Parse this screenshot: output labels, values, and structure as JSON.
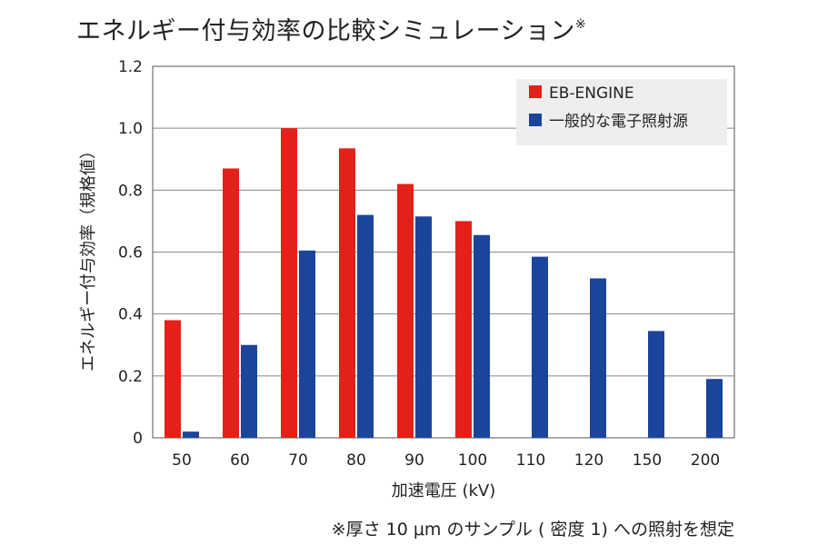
{
  "chart_data": {
    "type": "bar",
    "title": "エネルギー付与効率の比較シミュレーション",
    "title_mark": "※",
    "xlabel": "加速電圧 (kV)",
    "ylabel": "エネルギー付与効率（規格値）",
    "footnote": "※厚さ 10 μm のサンプル ( 密度 1) への照射を想定",
    "categories": [
      "50",
      "60",
      "70",
      "80",
      "90",
      "100",
      "110",
      "120",
      "150",
      "200"
    ],
    "ylim": [
      0,
      1.2
    ],
    "yticks": [
      "0",
      "0.2",
      "0.4",
      "0.6",
      "0.8",
      "1.0",
      "1.2"
    ],
    "grid": true,
    "legend_position": "top-right",
    "series": [
      {
        "name": "EB-ENGINE",
        "color": "#e32119",
        "values": [
          0.38,
          0.87,
          1.0,
          0.935,
          0.82,
          0.7,
          null,
          null,
          null,
          null
        ]
      },
      {
        "name": "一般的な電子照射源",
        "color": "#1b449b",
        "values": [
          0.02,
          0.3,
          0.605,
          0.72,
          0.715,
          0.655,
          0.585,
          0.515,
          0.345,
          0.19
        ]
      }
    ]
  }
}
